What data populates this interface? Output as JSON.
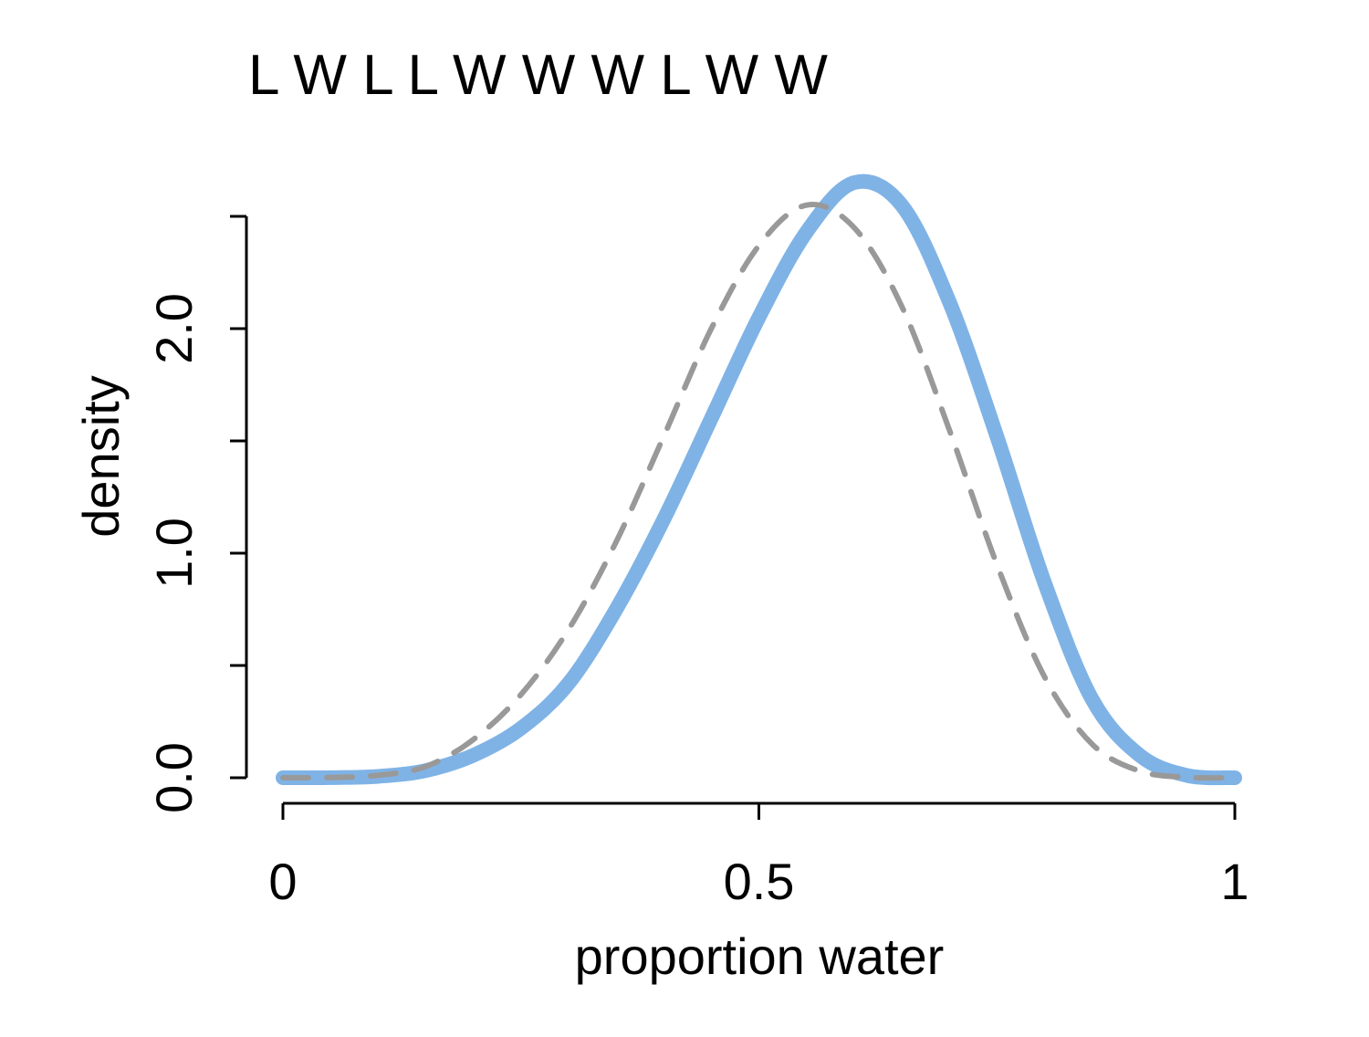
{
  "chart_data": {
    "type": "line",
    "title": "L W L L W W W L W W",
    "xlabel": "proportion water",
    "ylabel": "density",
    "xlim": [
      0,
      1
    ],
    "ylim": [
      0,
      2.5
    ],
    "x_ticks": [
      {
        "value": 0,
        "label": "0"
      },
      {
        "value": 0.5,
        "label": "0.5"
      },
      {
        "value": 1,
        "label": "1"
      }
    ],
    "y_ticks": [
      {
        "value": 0,
        "label": "0.0"
      },
      {
        "value": 0.5,
        "label": ""
      },
      {
        "value": 1.0,
        "label": "1.0"
      },
      {
        "value": 1.5,
        "label": ""
      },
      {
        "value": 2.0,
        "label": "2.0"
      },
      {
        "value": 2.5,
        "label": ""
      }
    ],
    "grid": false,
    "legend": "none",
    "series": [
      {
        "style": "solid",
        "color": "#7fb3e6",
        "x": [
          0,
          0.05,
          0.1,
          0.15,
          0.2,
          0.25,
          0.3,
          0.35,
          0.4,
          0.45,
          0.5,
          0.55,
          0.6,
          0.65,
          0.7,
          0.75,
          0.8,
          0.85,
          0.9,
          0.95,
          1.0
        ],
        "y": [
          0,
          0.0004,
          0.006,
          0.032,
          0.1,
          0.22,
          0.42,
          0.75,
          1.15,
          1.6,
          2.05,
          2.43,
          2.65,
          2.55,
          2.12,
          1.52,
          0.87,
          0.35,
          0.1,
          0.01,
          0
        ]
      },
      {
        "style": "dashed",
        "color": "#999999",
        "x": [
          0,
          0.05,
          0.1,
          0.15,
          0.2,
          0.25,
          0.3,
          0.35,
          0.4,
          0.45,
          0.5,
          0.55,
          0.6,
          0.65,
          0.7,
          0.75,
          0.8,
          0.85,
          0.9,
          0.95,
          1.0
        ],
        "y": [
          0,
          0.001,
          0.011,
          0.05,
          0.17,
          0.37,
          0.66,
          1.05,
          1.52,
          2.0,
          2.37,
          2.55,
          2.45,
          2.1,
          1.55,
          0.95,
          0.45,
          0.15,
          0.03,
          0.002,
          0
        ]
      }
    ]
  }
}
